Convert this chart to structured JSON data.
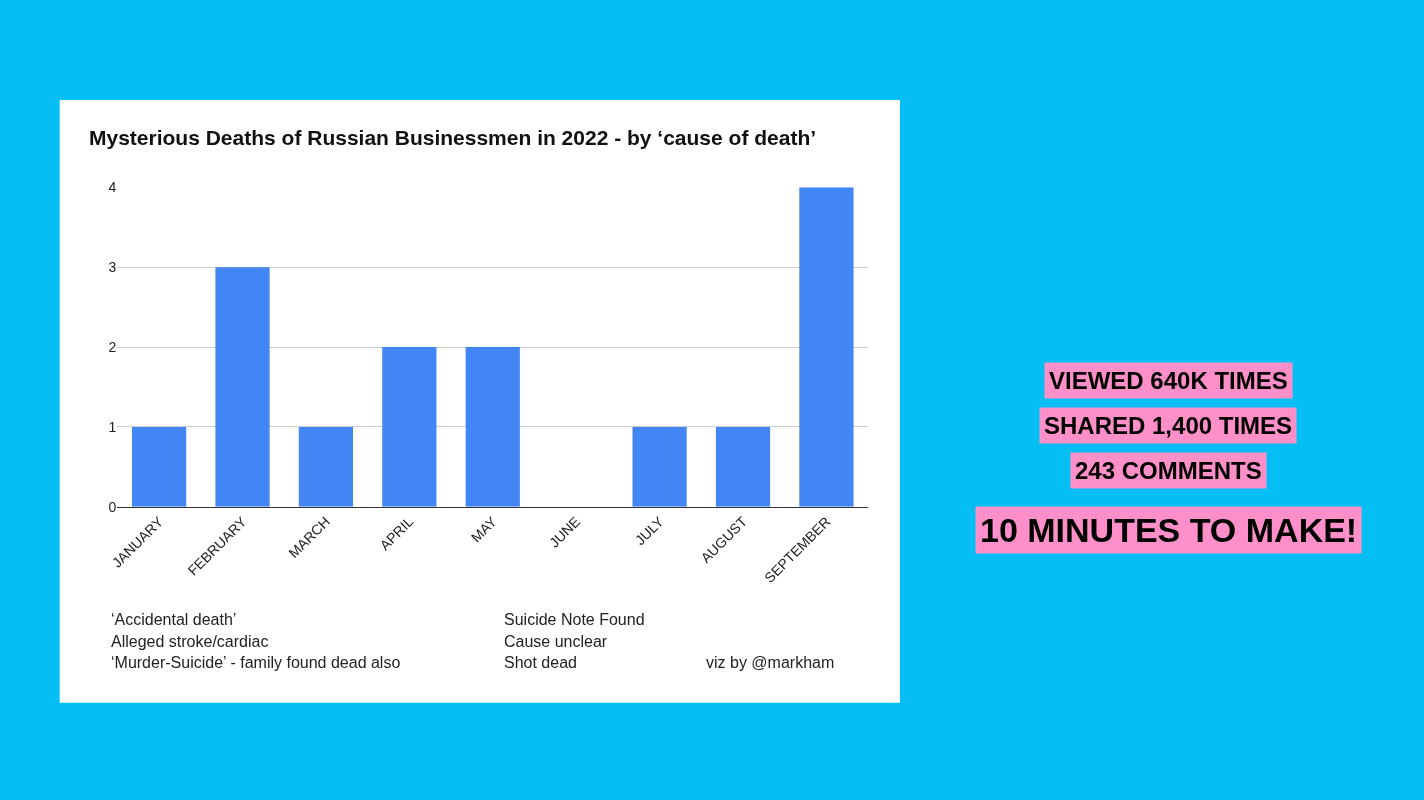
{
  "chart_data": {
    "type": "bar",
    "title": "Mysterious Deaths of Russian Businessmen in 2022 - by ‘cause of death’",
    "categories": [
      "JANUARY",
      "FEBRUARY",
      "MARCH",
      "APRIL",
      "MAY",
      "JUNE",
      "JULY",
      "AUGUST",
      "SEPTEMBER"
    ],
    "values": [
      1,
      3,
      1,
      2,
      2,
      0,
      1,
      1,
      4
    ],
    "color": "#4285f4",
    "ylim": [
      0,
      4
    ],
    "yticks": [
      0,
      1,
      2,
      3,
      4
    ],
    "grid": "y",
    "annotations": [
      "‘Accidental death’",
      "Alleged stroke/cardiac",
      "‘Murder-Suicide’ - family found dead also",
      "Suicide Note Found",
      "Cause unclear",
      "Shot dead",
      "viz by @markham",
      "VIEWED 640K TIMES",
      "SHARED 1,400 TIMES",
      "243 COMMENTS",
      "10 MINUTES TO MAKE!"
    ]
  }
}
